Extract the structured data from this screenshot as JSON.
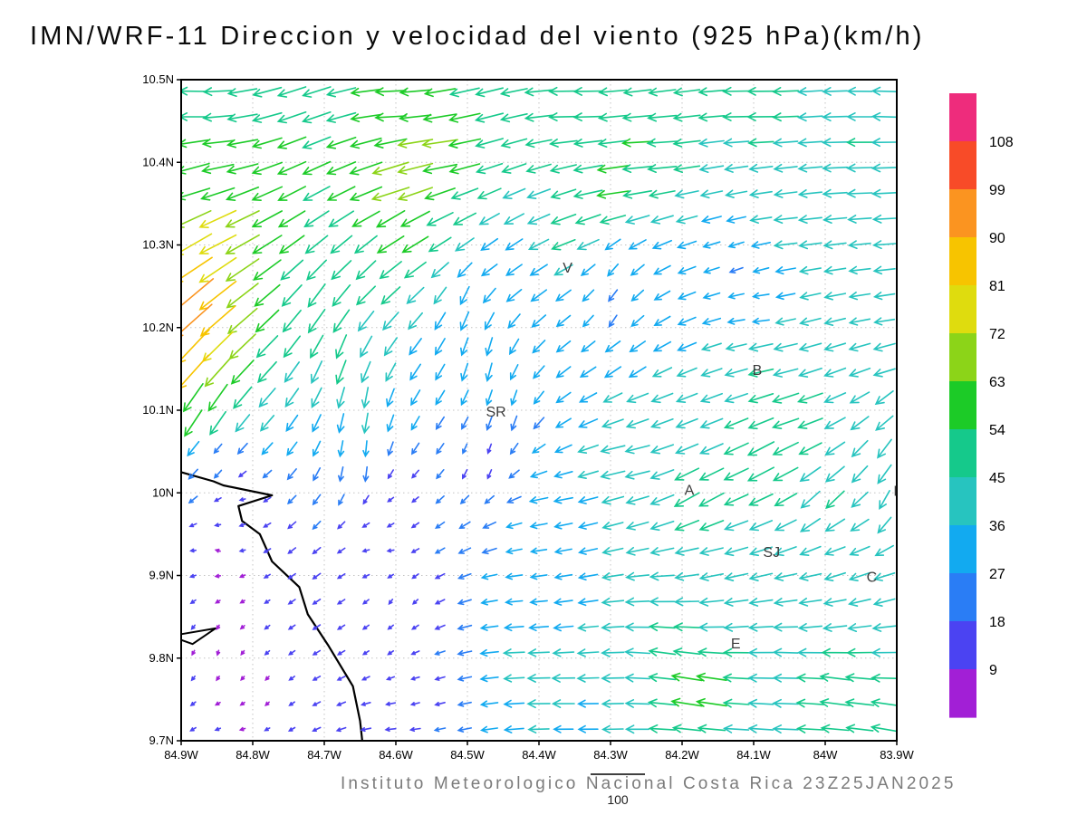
{
  "title": "IMN/WRF-11 Direccion y velocidad del viento (925 hPa)(km/h)",
  "footer": "Instituto Meteorologico Nacional Costa Rica 23Z25JAN2025",
  "reference_vector": {
    "label": "100",
    "speed": 100
  },
  "chart_data": {
    "type": "quiver",
    "title": "IMN/WRF-11 Direccion y velocidad del viento (925 hPa)(km/h)",
    "model": "IMN/WRF-11",
    "level": "925 hPa",
    "units": "km/h",
    "valid_time": "23Z25JAN2025",
    "grid": false,
    "axes": {
      "lon_ticks": [
        "84.9W",
        "84.8W",
        "84.7W",
        "84.6W",
        "84.5W",
        "84.4W",
        "84.3W",
        "84.2W",
        "84.1W",
        "84W",
        "83.9W"
      ],
      "lat_ticks": [
        "10.5N",
        "10.4N",
        "10.3N",
        "10.2N",
        "10.1N",
        "10N",
        "9.9N",
        "9.8N",
        "9.7N"
      ],
      "lon_w_range": [
        84.9,
        83.9
      ],
      "lat_range": [
        9.7,
        10.5
      ]
    },
    "colorbar": {
      "levels": [
        9,
        18,
        27,
        36,
        45,
        54,
        63,
        72,
        81,
        90,
        99,
        108
      ],
      "colors": [
        "#a21fd6",
        "#4b43f2",
        "#2a7df5",
        "#12aaf0",
        "#27c4bf",
        "#15c98b",
        "#1ccb27",
        "#8cd418",
        "#dfdc0e",
        "#f7c400",
        "#fb9420",
        "#f84b28",
        "#ee2c7c"
      ],
      "labels_top_to_bottom": [
        "108",
        "99",
        "90",
        "81",
        "72",
        "63",
        "54",
        "45",
        "36",
        "27",
        "18",
        "9"
      ]
    },
    "cities": [
      {
        "label": "V",
        "lon_w": 84.36,
        "lat": 10.272
      },
      {
        "label": "B",
        "lon_w": 84.095,
        "lat": 10.148
      },
      {
        "label": "SR",
        "lon_w": 84.46,
        "lat": 10.098
      },
      {
        "label": "A",
        "lon_w": 84.19,
        "lat": 10.003
      },
      {
        "label": "SJ",
        "lon_w": 84.075,
        "lat": 9.928
      },
      {
        "label": "C",
        "lon_w": 83.935,
        "lat": 9.898
      },
      {
        "label": "E",
        "lon_w": 84.125,
        "lat": 9.817
      },
      {
        "label": "I",
        "lon_w": 83.902,
        "lat": 10.002
      }
    ],
    "coastline": [
      [
        84.9,
        10.025
      ],
      [
        84.855,
        10.014
      ],
      [
        84.841,
        10.009
      ],
      [
        84.773,
        9.997
      ],
      [
        84.82,
        9.984
      ],
      [
        84.815,
        9.966
      ],
      [
        84.79,
        9.95
      ],
      [
        84.773,
        9.917
      ],
      [
        84.735,
        9.886
      ],
      [
        84.723,
        9.853
      ],
      [
        84.695,
        9.816
      ],
      [
        84.66,
        9.766
      ],
      [
        84.65,
        9.724
      ],
      [
        84.647,
        9.7
      ]
    ],
    "island": [
      [
        84.9,
        9.829
      ],
      [
        84.852,
        9.836
      ],
      [
        84.884,
        9.817
      ],
      [
        84.9,
        9.822
      ]
    ],
    "samples": [
      [
        84.88,
        10.47,
        178,
        50
      ],
      [
        84.6,
        10.47,
        182,
        55
      ],
      [
        84.35,
        10.47,
        180,
        52
      ],
      [
        84.1,
        10.47,
        180,
        48
      ],
      [
        83.92,
        10.47,
        178,
        44
      ],
      [
        84.85,
        10.42,
        186,
        55
      ],
      [
        84.55,
        10.42,
        188,
        65
      ],
      [
        84.25,
        10.42,
        183,
        55
      ],
      [
        83.95,
        10.42,
        180,
        46
      ],
      [
        84.87,
        10.37,
        196,
        62
      ],
      [
        84.6,
        10.37,
        197,
        72
      ],
      [
        84.3,
        10.37,
        188,
        58
      ],
      [
        83.95,
        10.37,
        182,
        45
      ],
      [
        84.86,
        10.32,
        205,
        74
      ],
      [
        84.6,
        10.32,
        212,
        58
      ],
      [
        84.35,
        10.32,
        200,
        48
      ],
      [
        84.05,
        10.32,
        186,
        42
      ],
      [
        83.91,
        10.32,
        183,
        40
      ],
      [
        84.88,
        10.27,
        213,
        82
      ],
      [
        84.65,
        10.27,
        224,
        48
      ],
      [
        84.45,
        10.27,
        215,
        34
      ],
      [
        84.3,
        10.27,
        230,
        28
      ],
      [
        84.12,
        10.27,
        200,
        24
      ],
      [
        83.93,
        10.27,
        186,
        38
      ],
      [
        84.895,
        10.24,
        220,
        100
      ],
      [
        84.89,
        10.22,
        222,
        92
      ],
      [
        84.7,
        10.22,
        235,
        52
      ],
      [
        84.5,
        10.22,
        248,
        36
      ],
      [
        84.3,
        10.22,
        240,
        24
      ],
      [
        84.1,
        10.22,
        185,
        28
      ],
      [
        83.92,
        10.22,
        188,
        36
      ],
      [
        84.89,
        10.16,
        228,
        86
      ],
      [
        84.68,
        10.16,
        250,
        46
      ],
      [
        84.48,
        10.16,
        258,
        34
      ],
      [
        84.28,
        10.16,
        215,
        34
      ],
      [
        84.08,
        10.16,
        192,
        46
      ],
      [
        83.92,
        10.16,
        195,
        40
      ],
      [
        84.87,
        10.1,
        238,
        60
      ],
      [
        84.65,
        10.1,
        262,
        38
      ],
      [
        84.45,
        10.1,
        255,
        28
      ],
      [
        84.25,
        10.1,
        200,
        42
      ],
      [
        84.05,
        10.1,
        198,
        50
      ],
      [
        83.91,
        10.1,
        220,
        40
      ],
      [
        84.85,
        10.04,
        230,
        18
      ],
      [
        84.65,
        10.04,
        268,
        28
      ],
      [
        84.48,
        10.04,
        255,
        16
      ],
      [
        84.28,
        10.04,
        192,
        46
      ],
      [
        84.08,
        10.04,
        208,
        54
      ],
      [
        83.92,
        10.04,
        235,
        42
      ],
      [
        84.82,
        9.99,
        190,
        9
      ],
      [
        84.6,
        9.99,
        215,
        12
      ],
      [
        84.38,
        9.99,
        190,
        34
      ],
      [
        84.18,
        9.99,
        210,
        52
      ],
      [
        84.0,
        9.99,
        225,
        46
      ],
      [
        83.9,
        9.99,
        245,
        38
      ],
      [
        84.85,
        9.93,
        160,
        8
      ],
      [
        84.62,
        9.93,
        185,
        11
      ],
      [
        84.4,
        9.93,
        188,
        28
      ],
      [
        84.18,
        9.93,
        192,
        42
      ],
      [
        83.98,
        9.93,
        200,
        38
      ],
      [
        84.82,
        9.87,
        210,
        8
      ],
      [
        84.6,
        9.87,
        235,
        10
      ],
      [
        84.42,
        9.87,
        185,
        30
      ],
      [
        84.22,
        9.87,
        180,
        44
      ],
      [
        84.02,
        9.87,
        188,
        40
      ],
      [
        83.9,
        9.87,
        195,
        38
      ],
      [
        84.85,
        9.81,
        255,
        8
      ],
      [
        84.62,
        9.81,
        215,
        11
      ],
      [
        84.42,
        9.81,
        182,
        38
      ],
      [
        84.22,
        9.81,
        172,
        48
      ],
      [
        84.05,
        9.81,
        178,
        44
      ],
      [
        83.9,
        9.81,
        180,
        45
      ],
      [
        84.8,
        9.76,
        230,
        8
      ],
      [
        84.58,
        9.76,
        195,
        14
      ],
      [
        84.38,
        9.76,
        180,
        42
      ],
      [
        84.18,
        9.76,
        170,
        58
      ],
      [
        83.98,
        9.76,
        172,
        55
      ],
      [
        84.82,
        9.72,
        195,
        9
      ],
      [
        84.6,
        9.72,
        185,
        18
      ],
      [
        84.35,
        9.72,
        180,
        34
      ],
      [
        84.1,
        9.72,
        176,
        44
      ],
      [
        83.91,
        9.72,
        170,
        48
      ]
    ]
  }
}
